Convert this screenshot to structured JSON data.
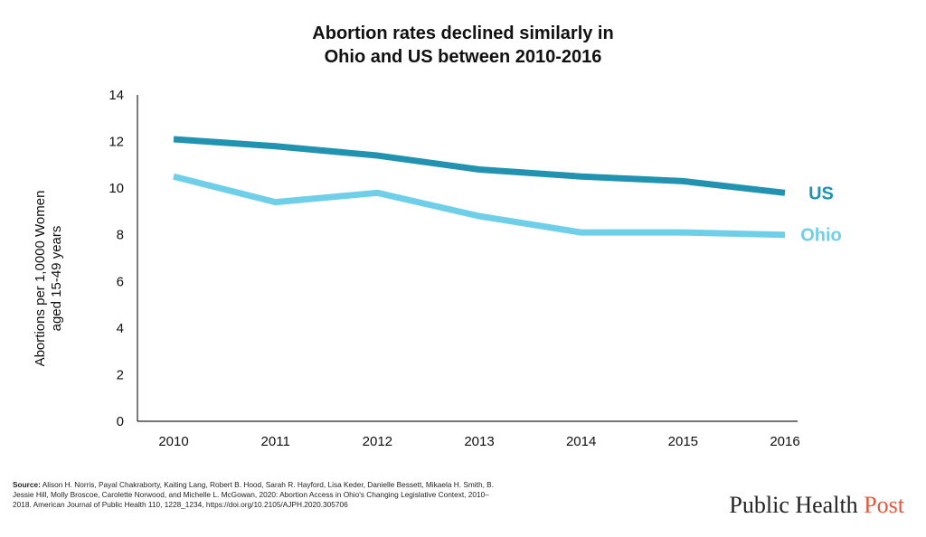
{
  "title_line1": "Abortion rates declined similarly in",
  "title_line2": "Ohio and US between 2010-2016",
  "source_label": "Source:",
  "source_text": "Alison H. Norris, Payal Chakraborty, Kaiting Lang, Robert B. Hood, Sarah R. Hayford, Lisa Keder, Danielle Bessett, Mikaela H. Smith, B. Jessie Hill, Molly Broscoe, Carolette Norwood, and Michelle L. McGowan, 2020: Abortion Access in Ohio's Changing Legislative Context, 2010–2018. American Journal of Public Health 110, 1228_1234, https://doi.org/10.2105/AJPH.2020.305706",
  "brand": {
    "part1": "Public Health ",
    "part2": "Post",
    "accent_color": "#e8553b"
  },
  "chart_data": {
    "type": "line",
    "title": "Abortion rates declined similarly in Ohio and US between 2010-2016",
    "ylabel_line1": "Abortions per 1,0000 Women",
    "ylabel_line2": "aged 15-49 years",
    "xlabel": "",
    "x": [
      "2010",
      "2011",
      "2012",
      "2013",
      "2014",
      "2015",
      "2016"
    ],
    "yticks": [
      "0",
      "2",
      "4",
      "6",
      "8",
      "10",
      "12",
      "14"
    ],
    "ylim": [
      0,
      14
    ],
    "grid": false,
    "legend": "inline labels at line ends",
    "series": [
      {
        "name": "US",
        "color": "#2193b0",
        "values": [
          12.1,
          11.8,
          11.4,
          10.8,
          10.5,
          10.3,
          9.8
        ]
      },
      {
        "name": "Ohio",
        "color": "#6fcfe8",
        "values": [
          10.5,
          9.4,
          9.8,
          8.8,
          8.1,
          8.1,
          8.0
        ]
      }
    ]
  }
}
